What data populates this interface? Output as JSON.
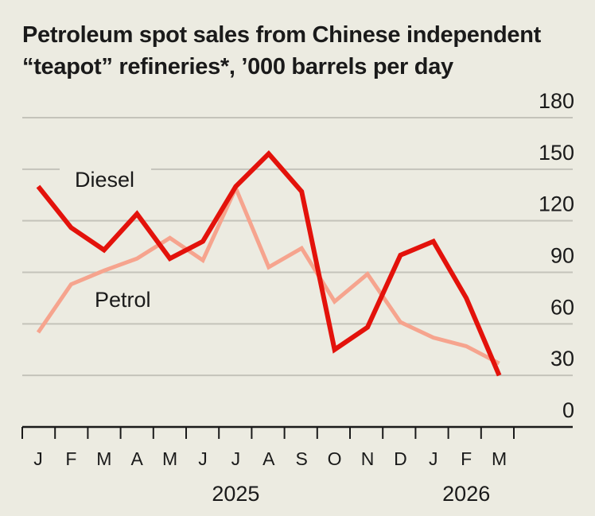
{
  "chart_data": {
    "type": "line",
    "title": "Petroleum spot sales from Chinese independent “teapot” refineries*, ’000 barrels per day",
    "categories": [
      "J",
      "F",
      "M",
      "A",
      "M",
      "J",
      "J",
      "A",
      "S",
      "O",
      "N",
      "D",
      "J",
      "F",
      "M"
    ],
    "year_labels": [
      {
        "label": "2025",
        "index": 6
      },
      {
        "label": "2026",
        "index": 13
      }
    ],
    "ylim": [
      0,
      180
    ],
    "yticks": [
      0,
      30,
      60,
      90,
      120,
      150,
      180
    ],
    "grid": true,
    "series": [
      {
        "name": "Diesel",
        "color": "#e3120b",
        "values": [
          140,
          116,
          103,
          124,
          98,
          108,
          140,
          159,
          137,
          45,
          58,
          100,
          108,
          75,
          30
        ]
      },
      {
        "name": "Petrol",
        "color": "#f6a48e",
        "values": [
          55,
          83,
          91,
          98,
          110,
          97,
          139,
          93,
          104,
          73,
          89,
          61,
          52,
          47,
          37
        ]
      }
    ]
  }
}
